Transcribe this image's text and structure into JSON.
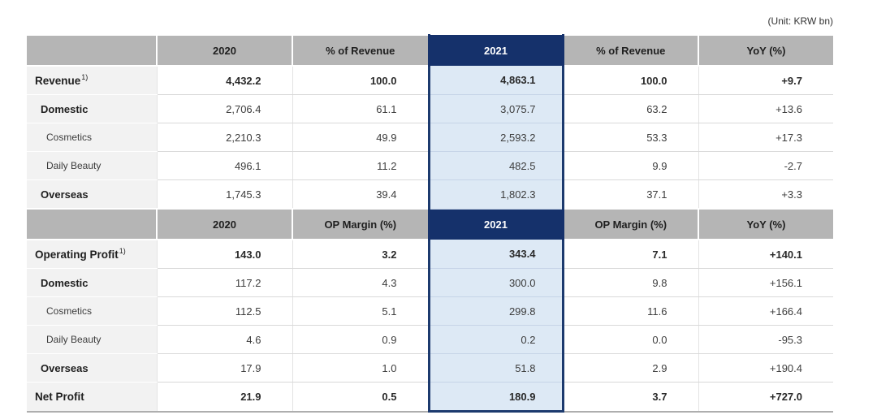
{
  "unit_note": "(Unit: KRW bn)",
  "colors": {
    "highlight_navy": "#15316b",
    "highlight_light_blue": "#dde9f5",
    "header_gray": "#b5b5b5",
    "label_gray": "#f2f2f2"
  },
  "table": {
    "sections": [
      {
        "header": [
          "",
          "2020",
          "% of Revenue",
          "2021",
          "% of Revenue",
          "YoY (%)"
        ],
        "rows": [
          {
            "label": "Revenue",
            "sup": "1)",
            "level": 0,
            "values": [
              "4,432.2",
              "100.0",
              "4,863.1",
              "100.0",
              "+9.7"
            ]
          },
          {
            "label": "Domestic",
            "level": 1,
            "values": [
              "2,706.4",
              "61.1",
              "3,075.7",
              "63.2",
              "+13.6"
            ]
          },
          {
            "label": "Cosmetics",
            "level": 2,
            "values": [
              "2,210.3",
              "49.9",
              "2,593.2",
              "53.3",
              "+17.3"
            ]
          },
          {
            "label": "Daily Beauty",
            "level": 2,
            "values": [
              "496.1",
              "11.2",
              "482.5",
              "9.9",
              "-2.7"
            ]
          },
          {
            "label": "Overseas",
            "level": 1,
            "values": [
              "1,745.3",
              "39.4",
              "1,802.3",
              "37.1",
              "+3.3"
            ]
          }
        ]
      },
      {
        "header": [
          "",
          "2020",
          "OP Margin (%)",
          "2021",
          "OP Margin (%)",
          "YoY (%)"
        ],
        "rows": [
          {
            "label": "Operating Profit",
            "sup": "1)",
            "level": 0,
            "values": [
              "143.0",
              "3.2",
              "343.4",
              "7.1",
              "+140.1"
            ]
          },
          {
            "label": "Domestic",
            "level": 1,
            "values": [
              "117.2",
              "4.3",
              "300.0",
              "9.8",
              "+156.1"
            ]
          },
          {
            "label": "Cosmetics",
            "level": 2,
            "values": [
              "112.5",
              "5.1",
              "299.8",
              "11.6",
              "+166.4"
            ]
          },
          {
            "label": "Daily Beauty",
            "level": 2,
            "values": [
              "4.6",
              "0.9",
              "0.2",
              "0.0",
              "-95.3"
            ]
          },
          {
            "label": "Overseas",
            "level": 1,
            "values": [
              "17.9",
              "1.0",
              "51.8",
              "2.9",
              "+190.4"
            ]
          },
          {
            "label": "Net Profit",
            "level": 0,
            "values": [
              "21.9",
              "0.5",
              "180.9",
              "3.7",
              "+727.0"
            ]
          }
        ]
      }
    ]
  }
}
